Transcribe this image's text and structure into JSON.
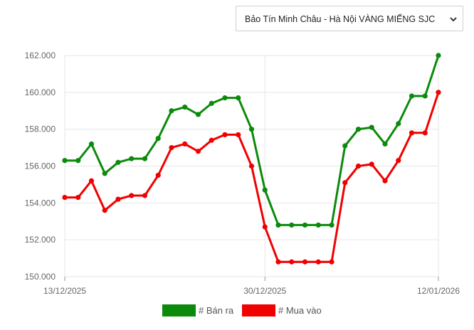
{
  "selector": {
    "value": "Bảo Tín Minh Châu - Hà Nội VÀNG MIẾNG SJC"
  },
  "colors": {
    "sell": "#0b8a0b",
    "buy": "#f00000",
    "grid": "#e6e6e6",
    "tick_text": "#666666"
  },
  "chart_data": {
    "type": "line",
    "title": "",
    "xlabel": "",
    "ylabel": "",
    "ylim": [
      150000,
      162000
    ],
    "y_ticks": [
      "150.000",
      "152.000",
      "154.000",
      "156.000",
      "158.000",
      "160.000",
      "162.000"
    ],
    "y_tick_values": [
      150000,
      152000,
      154000,
      156000,
      158000,
      160000,
      162000
    ],
    "x_tick_labels": [
      "13/12/2025",
      "30/12/2025",
      "12/01/2026"
    ],
    "x_tick_indices": [
      0,
      15,
      28
    ],
    "grid": true,
    "legend_position": "bottom",
    "series": [
      {
        "name": "# Bán ra",
        "color_key": "sell",
        "values": [
          156300,
          156300,
          157200,
          155600,
          156200,
          156400,
          156400,
          157500,
          159000,
          159200,
          158800,
          159400,
          159700,
          159700,
          158000,
          154700,
          152800,
          152800,
          152800,
          152800,
          152800,
          157100,
          158000,
          158100,
          157200,
          158300,
          159800,
          159800,
          162000
        ]
      },
      {
        "name": "# Mua vào",
        "color_key": "buy",
        "values": [
          154300,
          154300,
          155200,
          153600,
          154200,
          154400,
          154400,
          155500,
          157000,
          157200,
          156800,
          157400,
          157700,
          157700,
          156000,
          152700,
          150800,
          150800,
          150800,
          150800,
          150800,
          155100,
          156000,
          156100,
          155200,
          156300,
          157800,
          157800,
          160000
        ]
      }
    ]
  }
}
